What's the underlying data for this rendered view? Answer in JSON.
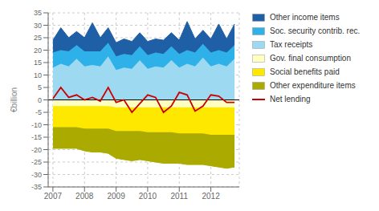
{
  "chart_data": {
    "type": "area",
    "stacked": true,
    "ylabel": "€billion",
    "x": [
      2007.0,
      2007.25,
      2007.5,
      2007.75,
      2008.0,
      2008.25,
      2008.5,
      2008.75,
      2009.0,
      2009.25,
      2009.5,
      2009.75,
      2010.0,
      2010.25,
      2010.5,
      2010.75,
      2011.0,
      2011.25,
      2011.5,
      2011.75,
      2012.0,
      2012.25,
      2012.5,
      2012.75
    ],
    "xlim": [
      2006.85,
      2012.9
    ],
    "xticks": [
      2007,
      2008,
      2009,
      2010,
      2011,
      2012
    ],
    "ylim": [
      -35,
      35
    ],
    "yticks": [
      -35,
      -30,
      -25,
      -20,
      -15,
      -10,
      -5,
      0,
      5,
      10,
      15,
      20,
      25,
      30,
      35
    ],
    "grid": true,
    "legend": "right",
    "series": [
      {
        "name": "Tax receipts",
        "type": "area",
        "color": "#9DD9F0",
        "values": [
          13.0,
          14.5,
          13.5,
          16.5,
          13.5,
          14.0,
          13.5,
          17.5,
          12.0,
          13.0,
          12.5,
          16.0,
          12.5,
          13.5,
          13.0,
          16.0,
          13.0,
          14.5,
          13.5,
          17.0,
          13.5,
          14.5,
          13.5,
          16.5
        ]
      },
      {
        "name": "Soc. security contrib. rec.",
        "type": "area",
        "color": "#2EB0E8",
        "values": [
          6.0,
          5.5,
          6.0,
          5.5,
          6.0,
          5.5,
          6.0,
          5.5,
          5.5,
          5.5,
          5.5,
          5.5,
          5.5,
          5.5,
          5.5,
          5.5,
          5.5,
          5.5,
          5.5,
          5.5,
          5.5,
          5.5,
          5.5,
          5.5
        ]
      },
      {
        "name": "Other income items",
        "type": "area",
        "color": "#1F5FA6",
        "values": [
          5.0,
          9.0,
          5.5,
          5.5,
          5.5,
          11.5,
          5.5,
          6.0,
          5.5,
          6.0,
          5.5,
          5.5,
          5.5,
          5.5,
          5.5,
          5.5,
          5.5,
          11.5,
          5.5,
          5.5,
          5.5,
          10.5,
          5.5,
          8.5
        ]
      },
      {
        "name": "Gov. final consumption",
        "type": "area",
        "color": "#FFFFC0",
        "values": [
          -2.5,
          -2.5,
          -2.5,
          -2.5,
          -2.5,
          -2.5,
          -2.5,
          -2.5,
          -3.0,
          -3.0,
          -3.0,
          -3.0,
          -3.0,
          -3.0,
          -3.0,
          -3.0,
          -3.0,
          -3.0,
          -3.0,
          -3.0,
          -3.0,
          -3.0,
          -3.0,
          -3.0
        ]
      },
      {
        "name": "Social benefits paid",
        "type": "area",
        "color": "#FFE800",
        "values": [
          -8.5,
          -8.5,
          -8.5,
          -8.5,
          -9.0,
          -9.0,
          -9.0,
          -9.0,
          -9.5,
          -9.5,
          -9.5,
          -9.5,
          -10.0,
          -10.0,
          -10.0,
          -10.0,
          -10.5,
          -10.5,
          -10.5,
          -10.5,
          -11.0,
          -11.0,
          -11.0,
          -11.0
        ]
      },
      {
        "name": "Other expenditure items",
        "type": "area",
        "color": "#AAAA00",
        "values": [
          -8.5,
          -8.5,
          -8.5,
          -8.5,
          -9.0,
          -9.5,
          -9.5,
          -10.0,
          -11.0,
          -11.5,
          -12.0,
          -11.5,
          -11.5,
          -12.0,
          -12.5,
          -12.5,
          -12.0,
          -12.5,
          -12.5,
          -12.5,
          -12.5,
          -13.0,
          -13.5,
          -13.0
        ]
      },
      {
        "name": "Net lending",
        "type": "line",
        "color": "#CC0000",
        "values": [
          0.5,
          5.0,
          1.0,
          2.0,
          0.0,
          1.0,
          -0.5,
          5.0,
          -1.0,
          0.0,
          -5.0,
          -1.5,
          2.0,
          1.0,
          -5.0,
          -2.5,
          3.0,
          2.0,
          -4.5,
          -2.5,
          2.0,
          1.5,
          -1.0,
          -1.0
        ]
      }
    ]
  }
}
